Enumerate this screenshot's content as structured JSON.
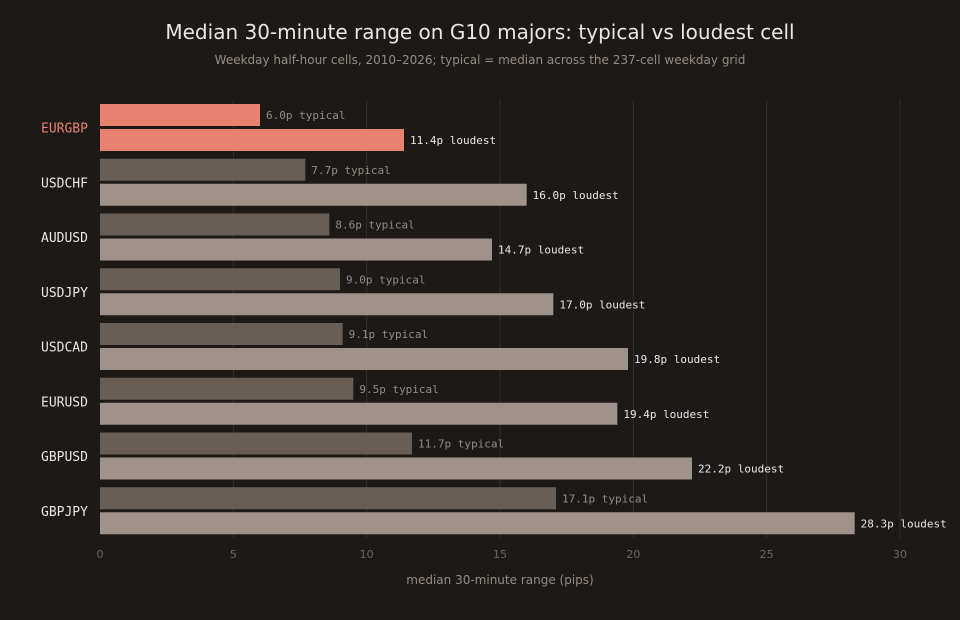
{
  "chart_data": {
    "type": "bar",
    "orientation": "horizontal",
    "title": "Median 30-minute range on G10 majors: typical vs loudest cell",
    "subtitle": "Weekday half-hour cells, 2010–2026; typical = median across the 237-cell weekday grid",
    "xlabel": "median 30-minute range (pips)",
    "xlim": [
      0,
      30
    ],
    "xticks": [
      "0",
      "5",
      "10",
      "15",
      "20",
      "25",
      "30"
    ],
    "grid": true,
    "highlight_category": "EURGBP",
    "categories": [
      "EURGBP",
      "USDCHF",
      "AUDUSD",
      "USDJPY",
      "USDCAD",
      "EURUSD",
      "GBPUSD",
      "GBPJPY"
    ],
    "series": [
      {
        "key": "typical",
        "values": [
          6.0,
          7.7,
          8.6,
          9.0,
          9.1,
          9.5,
          11.7,
          17.1
        ],
        "labels": [
          "6.0p typical",
          "7.7p typical",
          "8.6p typical",
          "9.0p typical",
          "9.1p typical",
          "9.5p typical",
          "11.7p typical",
          "17.1p typical"
        ],
        "color": "#685e56",
        "highlight_color": "#e8816f",
        "label_color": "#948b84"
      },
      {
        "key": "loudest",
        "values": [
          11.4,
          16.0,
          14.7,
          17.0,
          19.8,
          19.4,
          22.2,
          28.3
        ],
        "labels": [
          "11.4p loudest",
          "16.0p loudest",
          "14.7p loudest",
          "17.0p loudest",
          "19.8p loudest",
          "19.4p loudest",
          "22.2p loudest",
          "28.3p loudest"
        ],
        "color": "#9f928a",
        "highlight_color": "#e8816f",
        "label_color": "#ece6e1"
      }
    ],
    "colors": {
      "background": "#1c1917",
      "grid": "#35302c",
      "tick_text": "#6e655e",
      "axis_label": "#948b84",
      "category_text": "#ece6e1",
      "highlight_text": "#e8816f"
    }
  }
}
